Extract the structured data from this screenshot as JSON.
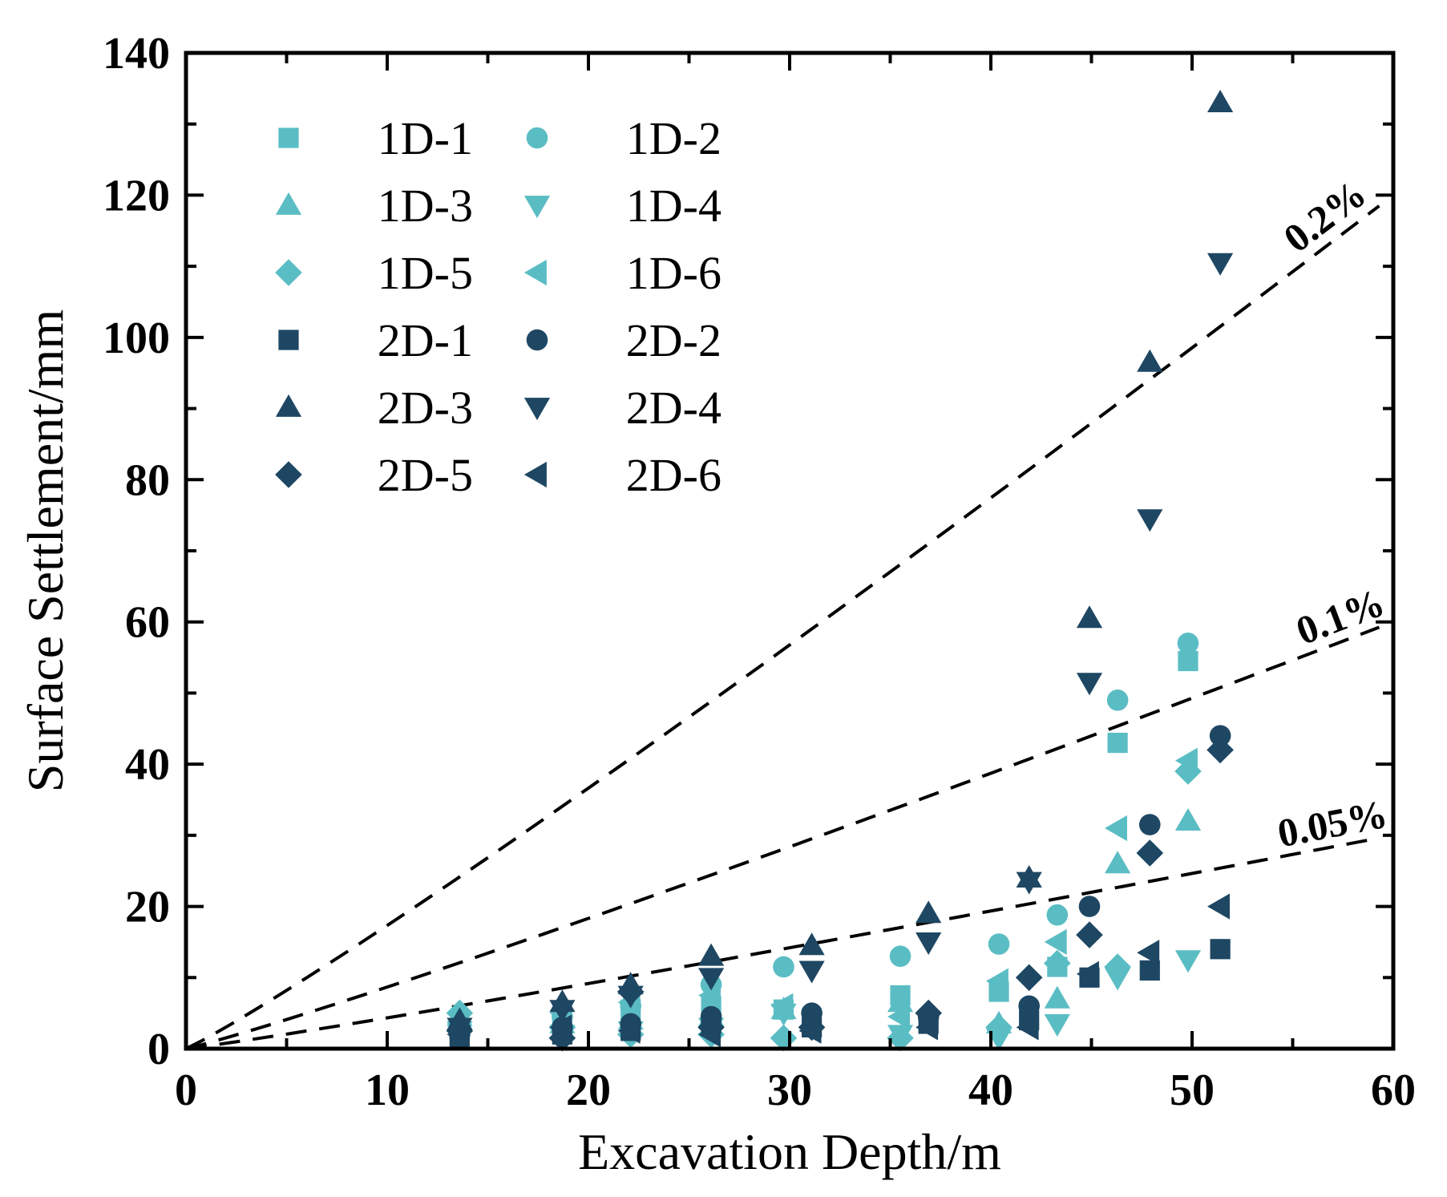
{
  "chart_data": {
    "type": "scatter",
    "xlabel": "Excavation Depth/m",
    "ylabel": "Surface Settlement/mm",
    "xlim": [
      0,
      60
    ],
    "ylim": [
      0,
      140
    ],
    "xticks": [
      0,
      10,
      20,
      30,
      40,
      50,
      60
    ],
    "yticks": [
      0,
      20,
      40,
      60,
      80,
      100,
      120,
      140
    ],
    "grid": false,
    "legend": {
      "placement": "top-left",
      "columns": 2
    },
    "colors": {
      "group_1D": "#5bbdc4",
      "group_2D": "#1e4763"
    },
    "reference_lines": [
      {
        "label": "0.2%",
        "slope": 2.0,
        "style": "dashed"
      },
      {
        "label": "0.1%",
        "slope": 1.0,
        "style": "dashed"
      },
      {
        "label": "0.05%",
        "slope": 0.5,
        "style": "dashed"
      }
    ],
    "series": [
      {
        "name": "1D-1",
        "marker": "square",
        "color": "#5bbdc4",
        "x": [
          13.6,
          18.7,
          22.1,
          26.1,
          29.7,
          35.5,
          40.4,
          43.3,
          46.3,
          49.8
        ],
        "y": [
          2.5,
          3.5,
          5.5,
          6.0,
          5.5,
          7.5,
          8.0,
          11.5,
          43.0,
          54.5
        ]
      },
      {
        "name": "1D-2",
        "marker": "circle",
        "color": "#5bbdc4",
        "x": [
          13.6,
          18.7,
          22.1,
          26.1,
          29.7,
          35.5,
          40.4,
          43.3,
          46.3,
          49.8
        ],
        "y": [
          3.0,
          4.5,
          6.0,
          9.0,
          11.5,
          13.0,
          14.7,
          18.8,
          49.0,
          57.0
        ]
      },
      {
        "name": "1D-3",
        "marker": "triangle-up",
        "color": "#5bbdc4",
        "x": [
          13.6,
          18.7,
          22.1,
          26.1,
          29.7,
          35.5,
          40.4,
          43.3,
          46.3,
          49.8
        ],
        "y": [
          4.5,
          3.5,
          4.0,
          4.5,
          5.5,
          6.5,
          3.5,
          7.0,
          26.0,
          32.0
        ]
      },
      {
        "name": "1D-4",
        "marker": "triangle-down",
        "color": "#5bbdc4",
        "x": [
          13.6,
          18.7,
          22.1,
          26.1,
          29.7,
          35.5,
          40.4,
          43.3,
          46.3,
          49.8
        ],
        "y": [
          2.5,
          2.0,
          2.5,
          3.0,
          5.0,
          2.0,
          1.5,
          3.5,
          10.0,
          12.5
        ]
      },
      {
        "name": "1D-5",
        "marker": "diamond",
        "color": "#5bbdc4",
        "x": [
          13.6,
          18.7,
          22.1,
          26.1,
          29.7,
          35.5,
          40.4,
          43.3,
          46.3,
          49.8
        ],
        "y": [
          5.0,
          3.0,
          2.0,
          2.0,
          1.5,
          1.5,
          3.0,
          12.0,
          11.5,
          39.0
        ]
      },
      {
        "name": "1D-6",
        "marker": "triangle-left",
        "color": "#5bbdc4",
        "x": [
          13.6,
          18.7,
          22.1,
          26.1,
          29.7,
          35.5,
          40.4,
          43.3,
          46.3,
          49.8
        ],
        "y": [
          3.5,
          5.0,
          6.5,
          7.5,
          6.0,
          4.5,
          9.5,
          15.0,
          31.0,
          40.5
        ]
      },
      {
        "name": "2D-1",
        "marker": "square",
        "color": "#1e4763",
        "x": [
          13.6,
          18.7,
          22.1,
          26.1,
          31.1,
          36.9,
          41.9,
          44.9,
          47.9,
          51.4
        ],
        "y": [
          1.5,
          2.0,
          2.5,
          3.5,
          3.0,
          3.5,
          4.0,
          10.0,
          11.0,
          14.0
        ]
      },
      {
        "name": "2D-2",
        "marker": "circle",
        "color": "#1e4763",
        "x": [
          13.6,
          18.7,
          22.1,
          26.1,
          31.1,
          36.9,
          41.9,
          44.9,
          47.9,
          51.4
        ],
        "y": [
          2.0,
          3.0,
          3.5,
          4.5,
          5.0,
          4.5,
          6.0,
          20.0,
          31.5,
          44.0
        ]
      },
      {
        "name": "2D-3",
        "marker": "triangle-up",
        "color": "#1e4763",
        "x": [
          13.6,
          18.7,
          22.1,
          26.1,
          31.1,
          36.9,
          41.9,
          44.9,
          47.9,
          51.4
        ],
        "y": [
          4.0,
          6.5,
          9.0,
          13.0,
          14.5,
          19.0,
          24.0,
          60.5,
          96.5,
          133.0
        ]
      },
      {
        "name": "2D-4",
        "marker": "triangle-down",
        "color": "#1e4763",
        "x": [
          13.6,
          18.7,
          22.1,
          26.1,
          31.1,
          36.9,
          41.9,
          44.9,
          47.9,
          51.4
        ],
        "y": [
          3.0,
          5.5,
          7.5,
          10.0,
          11.0,
          15.0,
          23.5,
          51.5,
          74.5,
          110.5
        ]
      },
      {
        "name": "2D-5",
        "marker": "diamond",
        "color": "#1e4763",
        "x": [
          13.6,
          18.7,
          22.1,
          26.1,
          31.1,
          36.9,
          41.9,
          44.9,
          47.9,
          51.4
        ],
        "y": [
          2.5,
          1.5,
          8.0,
          3.0,
          3.0,
          5.0,
          10.0,
          16.0,
          27.5,
          42.0
        ]
      },
      {
        "name": "2D-6",
        "marker": "triangle-left",
        "color": "#1e4763",
        "x": [
          13.6,
          18.7,
          22.1,
          26.1,
          31.1,
          36.9,
          41.9,
          44.9,
          47.9,
          51.4
        ],
        "y": [
          2.0,
          3.0,
          2.5,
          2.0,
          2.5,
          3.0,
          3.0,
          10.5,
          13.5,
          20.0
        ]
      }
    ]
  }
}
